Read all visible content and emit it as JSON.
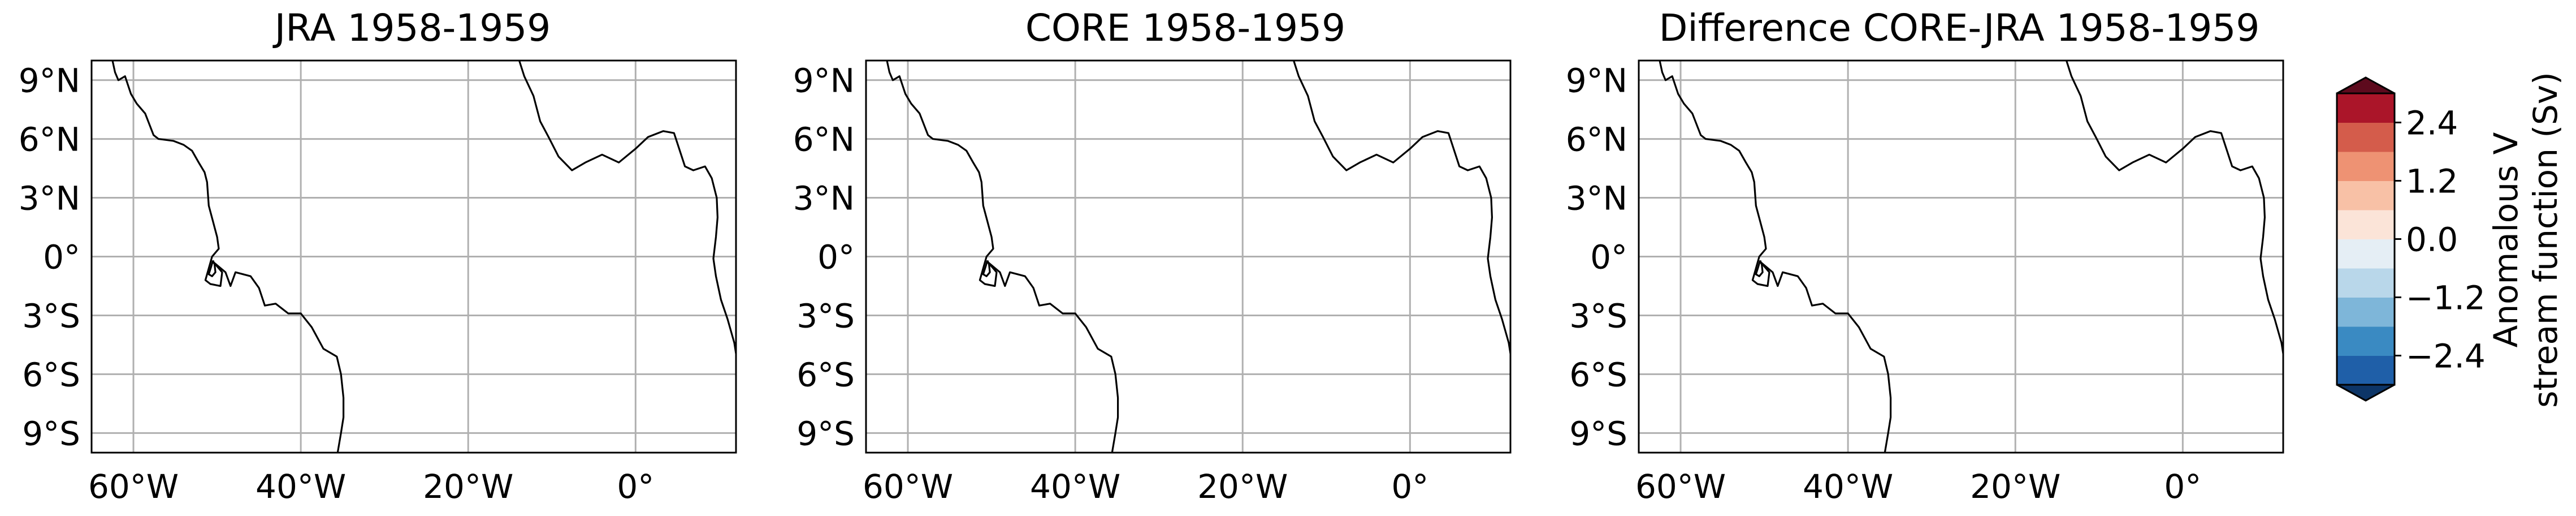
{
  "panels": [
    {
      "title": "JRA 1958-1959"
    },
    {
      "title": "CORE 1958-1959"
    },
    {
      "title": "Difference CORE-JRA 1958-1959"
    }
  ],
  "lat_ticks": [
    "9°N",
    "6°N",
    "3°N",
    "0°",
    "3°S",
    "6°S",
    "9°S"
  ],
  "lon_ticks": [
    "60°W",
    "40°W",
    "20°W",
    "0°"
  ],
  "lat_values": [
    9,
    6,
    3,
    0,
    -3,
    -6,
    -9
  ],
  "lon_values": [
    -60,
    -40,
    -20,
    0
  ],
  "extent": {
    "lon": [
      -65,
      12
    ],
    "lat": [
      -10,
      10
    ]
  },
  "colorbar": {
    "label_line1": "Anomalous V",
    "label_line2": "stream function (Sv)",
    "ticks": [
      "2.4",
      "1.2",
      "0.0",
      "−1.2",
      "−2.4"
    ],
    "tick_values": [
      2.4,
      1.2,
      0.0,
      -1.2,
      -2.4
    ],
    "range": [
      -3.0,
      3.0
    ],
    "colors": [
      "#1f5fa8",
      "#3a8ac2",
      "#7eb6d9",
      "#b9d7ea",
      "#e5eef5",
      "#fbe4d8",
      "#f8c1a6",
      "#ee9273",
      "#d45c4b",
      "#ab1529"
    ],
    "under_color": "#0d3567",
    "over_color": "#5d0a1d"
  },
  "coastlines": {
    "south_america": [
      [
        -62.5,
        10
      ],
      [
        -62.2,
        9.4
      ],
      [
        -61.8,
        9.0
      ],
      [
        -61.0,
        9.2
      ],
      [
        -60.3,
        8.3
      ],
      [
        -59.6,
        7.8
      ],
      [
        -58.6,
        7.3
      ],
      [
        -57.6,
        6.2
      ],
      [
        -57.0,
        6.0
      ],
      [
        -55.2,
        5.9
      ],
      [
        -54.0,
        5.7
      ],
      [
        -53.0,
        5.4
      ],
      [
        -52.2,
        4.8
      ],
      [
        -51.5,
        4.3
      ],
      [
        -51.2,
        3.8
      ],
      [
        -51.0,
        2.6
      ],
      [
        -50.5,
        1.8
      ],
      [
        -50.0,
        1.0
      ],
      [
        -49.8,
        0.4
      ],
      [
        -50.6,
        0.0
      ],
      [
        -51.0,
        -0.6
      ],
      [
        -51.4,
        -1.2
      ],
      [
        -50.8,
        -1.4
      ],
      [
        -49.6,
        -1.5
      ],
      [
        -49.4,
        -0.8
      ],
      [
        -50.4,
        -0.3
      ],
      [
        -49.0,
        -0.8
      ],
      [
        -48.4,
        -1.5
      ],
      [
        -47.8,
        -0.8
      ],
      [
        -46.0,
        -1.0
      ],
      [
        -45.0,
        -1.6
      ],
      [
        -44.3,
        -2.5
      ],
      [
        -43.0,
        -2.4
      ],
      [
        -41.5,
        -2.9
      ],
      [
        -40.0,
        -2.9
      ],
      [
        -38.7,
        -3.6
      ],
      [
        -37.3,
        -4.7
      ],
      [
        -35.7,
        -5.1
      ],
      [
        -35.2,
        -6.0
      ],
      [
        -34.9,
        -7.2
      ],
      [
        -34.9,
        -8.2
      ],
      [
        -35.2,
        -9.0
      ],
      [
        -35.6,
        -10.0
      ]
    ],
    "africa": [
      [
        -17.0,
        14.5
      ],
      [
        -16.8,
        13.4
      ],
      [
        -16.7,
        12.4
      ],
      [
        -15.5,
        11.7
      ],
      [
        -15.0,
        10.9
      ],
      [
        -14.2,
        10.4
      ],
      [
        -13.3,
        9.2
      ],
      [
        -12.2,
        8.2
      ],
      [
        -11.4,
        6.9
      ],
      [
        -10.4,
        6.1
      ],
      [
        -9.2,
        5.1
      ],
      [
        -7.6,
        4.4
      ],
      [
        -6.0,
        4.8
      ],
      [
        -4.0,
        5.2
      ],
      [
        -2.0,
        4.8
      ],
      [
        0.0,
        5.5
      ],
      [
        1.5,
        6.1
      ],
      [
        3.3,
        6.4
      ],
      [
        4.6,
        6.3
      ],
      [
        5.9,
        4.6
      ],
      [
        6.9,
        4.4
      ],
      [
        8.3,
        4.6
      ],
      [
        9.1,
        4.0
      ],
      [
        9.7,
        3.0
      ],
      [
        9.8,
        2.0
      ],
      [
        9.6,
        1.0
      ],
      [
        9.3,
        -0.1
      ],
      [
        9.6,
        -1.0
      ],
      [
        10.2,
        -2.2
      ],
      [
        11.0,
        -3.2
      ],
      [
        11.8,
        -4.4
      ],
      [
        12.2,
        -5.5
      ],
      [
        12.3,
        -6.6
      ],
      [
        12.8,
        -7.8
      ],
      [
        13.2,
        -9.0
      ],
      [
        13.5,
        -10.0
      ]
    ],
    "islands": [
      [
        -50.5,
        -0.2
      ],
      [
        -50.7,
        -0.5
      ],
      [
        -51.0,
        -0.9
      ],
      [
        -50.6,
        -1.0
      ],
      [
        -50.2,
        -0.8
      ],
      [
        -50.3,
        -0.4
      ],
      [
        -50.5,
        -0.2
      ]
    ]
  }
}
